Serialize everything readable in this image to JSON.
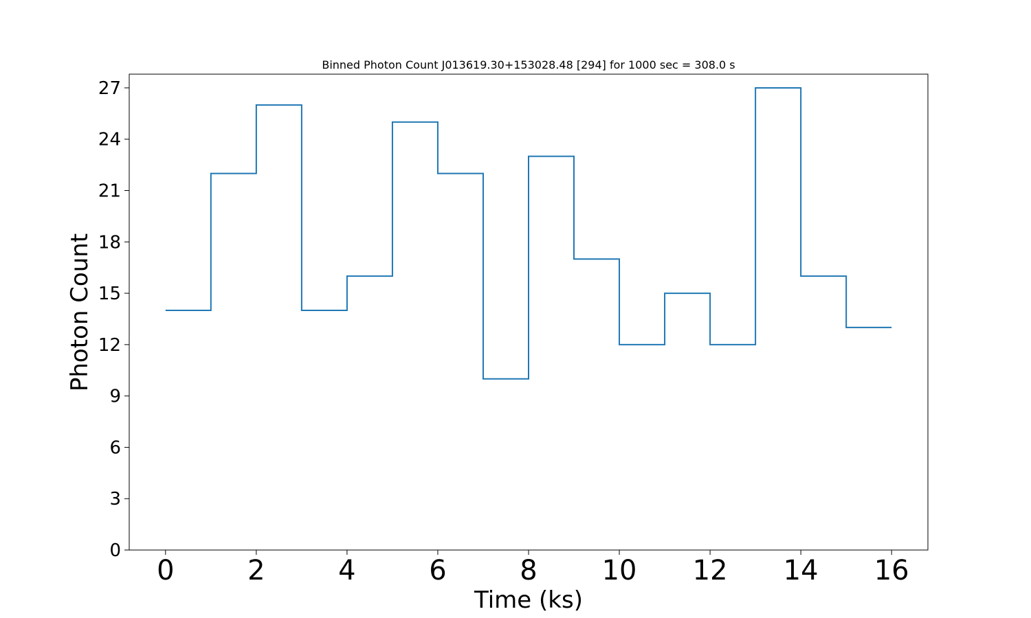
{
  "chart_data": {
    "type": "line",
    "drawstyle": "steps-post",
    "title": "Binned Photon Count J013619.30+153028.48 [294] for 1000 sec = 308.0 s",
    "xlabel": "Time (ks)",
    "ylabel": "Photon Count",
    "xlim": [
      -0.8,
      16.8
    ],
    "ylim": [
      0,
      27.8
    ],
    "xticks": [
      0,
      2,
      4,
      6,
      8,
      10,
      12,
      14,
      16
    ],
    "yticks": [
      0,
      3,
      6,
      9,
      12,
      15,
      18,
      21,
      24,
      27
    ],
    "grid": false,
    "line_color": "#1f77b4",
    "series": [
      {
        "x": [
          0,
          1,
          2,
          3,
          4,
          5,
          6,
          7,
          8,
          9,
          10,
          11,
          12,
          13,
          14,
          15,
          16
        ],
        "y": [
          14,
          22,
          26,
          14,
          16,
          25,
          22,
          10,
          23,
          17,
          12,
          15,
          12,
          27,
          16,
          13,
          13
        ]
      }
    ]
  }
}
